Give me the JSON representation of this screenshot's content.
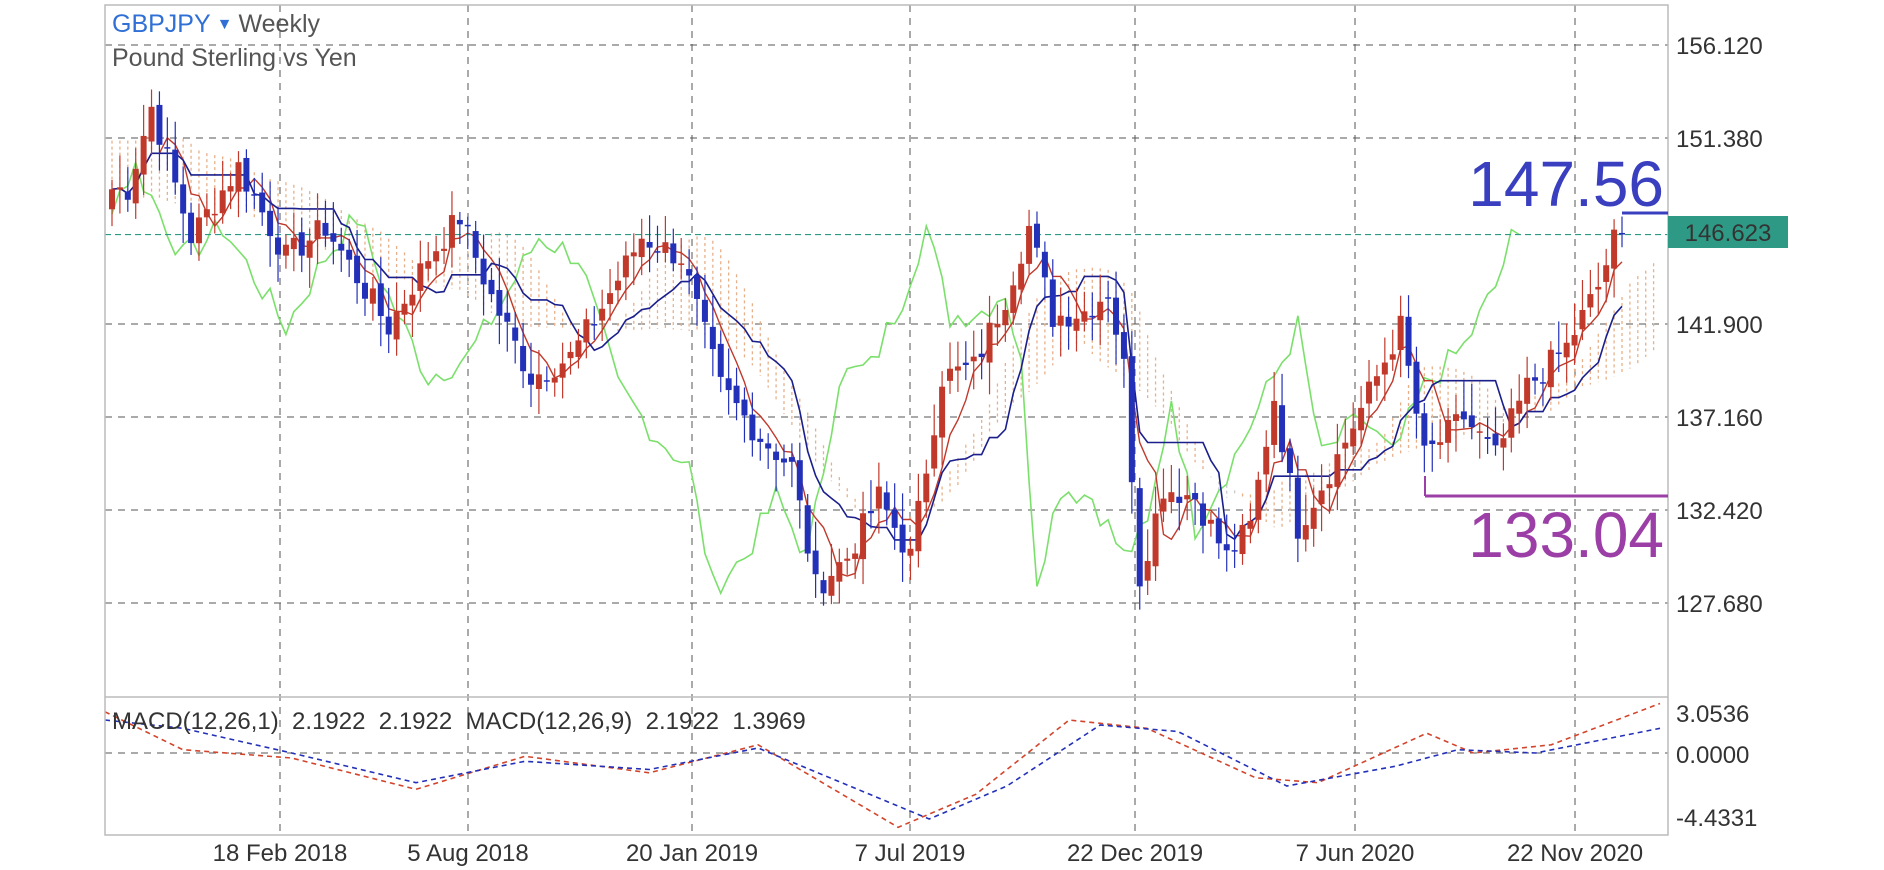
{
  "header": {
    "symbol": "GBPJPY",
    "dropdown_icon": "triangle-down-icon",
    "timeframe": "Weekly",
    "description": "Pound Sterling vs Yen"
  },
  "macd_label": "MACD(12,26,1)  2.1922  2.1922  MACD(12,26,9)  2.1922  1.3969",
  "price_axis": {
    "ticks": [
      "156.120",
      "151.380",
      "141.900",
      "137.160",
      "132.420",
      "127.680"
    ],
    "ylim": [
      123.5,
      158.1
    ]
  },
  "macd_axis": {
    "ticks": [
      "3.0536",
      "0.0000",
      "-4.4331"
    ]
  },
  "date_axis": {
    "ticks": [
      "18 Feb 2018",
      "5 Aug 2018",
      "20 Jan 2019",
      "7 Jul 2019",
      "22 Dec 2019",
      "7 Jun 2020",
      "22 Nov 2020"
    ]
  },
  "current_price": "146.623",
  "annotations": {
    "high": "147.56",
    "low": "133.04"
  },
  "colors": {
    "bull": "#c0392b",
    "bear": "#2330b8",
    "tenkan": "#c0392b",
    "kijun": "#1a1f8c",
    "chikou": "#7be06b",
    "cloud_a": "#e7b08a",
    "cloud_b": "#c9c9c9",
    "macd": "#2330b8",
    "signal": "#d2452c",
    "price_tag": "#2e9a85",
    "high_color": "#3a3fc0",
    "low_color": "#9b3fa6"
  },
  "chart_data": {
    "type": "candlestick",
    "title": "GBPJPY Weekly",
    "subtitle": "Pound Sterling vs Yen",
    "x_ticks": [
      "18 Feb 2018",
      "5 Aug 2018",
      "20 Jan 2019",
      "7 Jul 2019",
      "22 Dec 2019",
      "7 Jun 2020",
      "22 Nov 2020"
    ],
    "ylim": [
      123.5,
      158.1
    ],
    "last_price": 146.623,
    "annotations": [
      {
        "label": "147.56",
        "value": 147.56
      },
      {
        "label": "133.04",
        "value": 133.04
      }
    ],
    "legend": [
      "MACD(12,26,1) 2.1922 2.1922",
      "MACD(12,26,9) 2.1922 1.3969"
    ],
    "segments": [
      {
        "n": 3,
        "target": 148.9
      },
      {
        "n": 3,
        "target": 153.0
      },
      {
        "n": 5,
        "target": 146.5
      },
      {
        "n": 6,
        "target": 150.0
      },
      {
        "n": 6,
        "target": 145.5
      },
      {
        "n": 5,
        "target": 147.0
      },
      {
        "n": 4,
        "target": 144.5
      },
      {
        "n": 4,
        "target": 142.0
      },
      {
        "n": 5,
        "target": 145.5
      },
      {
        "n": 4,
        "target": 147.5
      },
      {
        "n": 4,
        "target": 143.5
      },
      {
        "n": 5,
        "target": 139.5
      },
      {
        "n": 5,
        "target": 140.5
      },
      {
        "n": 4,
        "target": 143.0
      },
      {
        "n": 5,
        "target": 146.5
      },
      {
        "n": 5,
        "target": 145.5
      },
      {
        "n": 5,
        "target": 139.0
      },
      {
        "n": 5,
        "target": 136.5
      },
      {
        "n": 4,
        "target": 135.0
      },
      {
        "n": 3,
        "target": 129.0
      },
      {
        "n": 4,
        "target": 130.5
      },
      {
        "n": 4,
        "target": 133.5
      },
      {
        "n": 4,
        "target": 130.5
      },
      {
        "n": 4,
        "target": 139.5
      },
      {
        "n": 4,
        "target": 140.0
      },
      {
        "n": 4,
        "target": 143.5
      },
      {
        "n": 3,
        "target": 147.0
      },
      {
        "n": 3,
        "target": 142.5
      },
      {
        "n": 4,
        "target": 142.8
      },
      {
        "n": 3,
        "target": 143.8
      },
      {
        "n": 2,
        "target": 140.0
      },
      {
        "n": 2,
        "target": 129.5
      },
      {
        "n": 3,
        "target": 134.0
      },
      {
        "n": 4,
        "target": 133.5
      },
      {
        "n": 4,
        "target": 130.5
      },
      {
        "n": 3,
        "target": 132.0
      },
      {
        "n": 3,
        "target": 138.5
      },
      {
        "n": 3,
        "target": 132.0
      },
      {
        "n": 5,
        "target": 135.5
      },
      {
        "n": 5,
        "target": 139.5
      },
      {
        "n": 3,
        "target": 142.0
      },
      {
        "n": 3,
        "target": 135.5
      },
      {
        "n": 5,
        "target": 137.5
      },
      {
        "n": 4,
        "target": 135.5
      },
      {
        "n": 4,
        "target": 139.0
      },
      {
        "n": 5,
        "target": 141.0
      },
      {
        "n": 4,
        "target": 144.0
      },
      {
        "n": 3,
        "target": 147.5
      }
    ],
    "macd_path": [
      [
        0.0,
        2.0
      ],
      [
        0.05,
        1.5
      ],
      [
        0.12,
        0.0
      ],
      [
        0.2,
        -1.8
      ],
      [
        0.27,
        -0.5
      ],
      [
        0.35,
        -1.0
      ],
      [
        0.42,
        0.3
      ],
      [
        0.53,
        -4.0
      ],
      [
        0.58,
        -2.0
      ],
      [
        0.64,
        1.7
      ],
      [
        0.69,
        1.3
      ],
      [
        0.76,
        -2.0
      ],
      [
        0.83,
        -0.8
      ],
      [
        0.87,
        0.2
      ],
      [
        0.92,
        0.0
      ],
      [
        1.0,
        1.5
      ]
    ],
    "signal_path": [
      [
        0.0,
        2.5
      ],
      [
        0.05,
        0.2
      ],
      [
        0.12,
        -0.3
      ],
      [
        0.2,
        -2.2
      ],
      [
        0.27,
        -0.2
      ],
      [
        0.35,
        -1.2
      ],
      [
        0.42,
        0.5
      ],
      [
        0.51,
        -4.5
      ],
      [
        0.56,
        -2.5
      ],
      [
        0.62,
        2.0
      ],
      [
        0.67,
        1.5
      ],
      [
        0.74,
        -1.5
      ],
      [
        0.78,
        -1.8
      ],
      [
        0.85,
        1.2
      ],
      [
        0.88,
        0.0
      ],
      [
        0.93,
        0.5
      ],
      [
        1.0,
        3.0
      ]
    ]
  }
}
